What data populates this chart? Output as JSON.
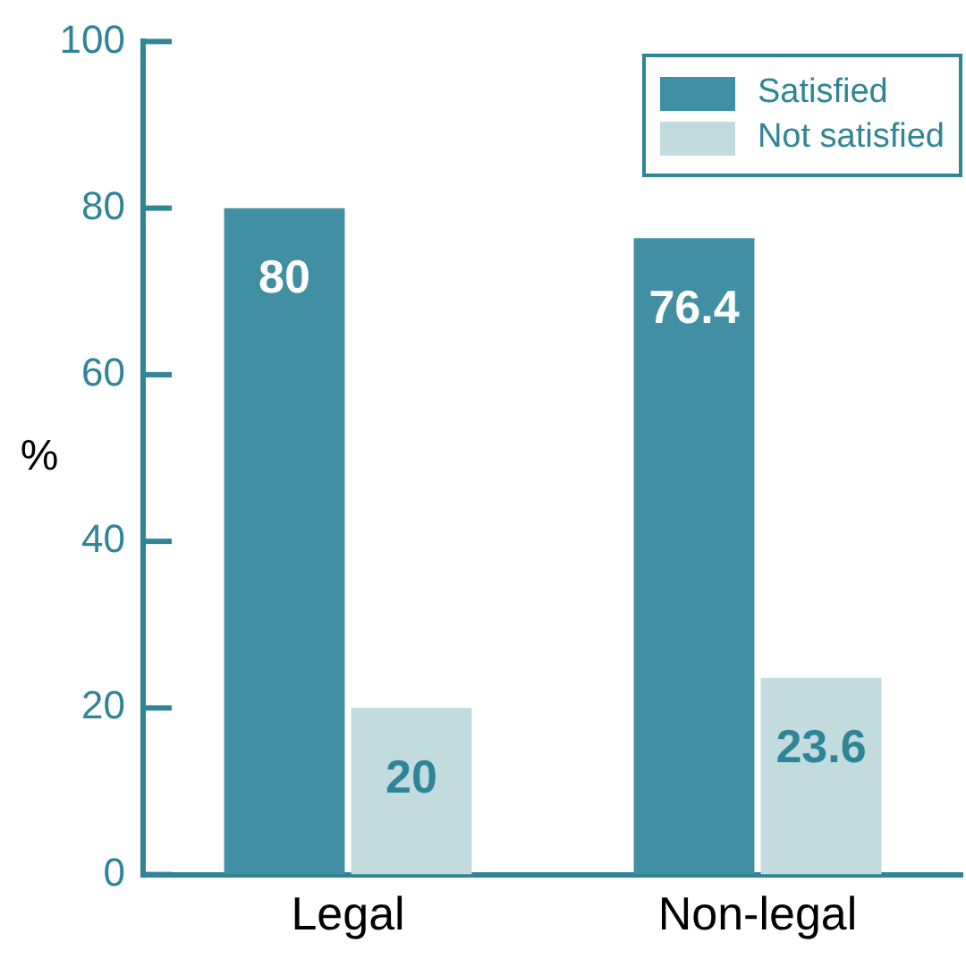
{
  "chart_data": {
    "type": "bar",
    "ylabel": "%",
    "categories": [
      "Legal",
      "Non-legal"
    ],
    "series": [
      {
        "name": "Satisfied",
        "color": "#418fa2",
        "values": [
          80,
          76.4
        ]
      },
      {
        "name": "Not satisfied",
        "color": "#c2dbdf",
        "values": [
          20,
          23.6
        ]
      }
    ],
    "ylim": [
      0,
      100
    ],
    "yticks": [
      0,
      20,
      40,
      60,
      80,
      100
    ],
    "legend": "top right",
    "data_labels": true
  }
}
